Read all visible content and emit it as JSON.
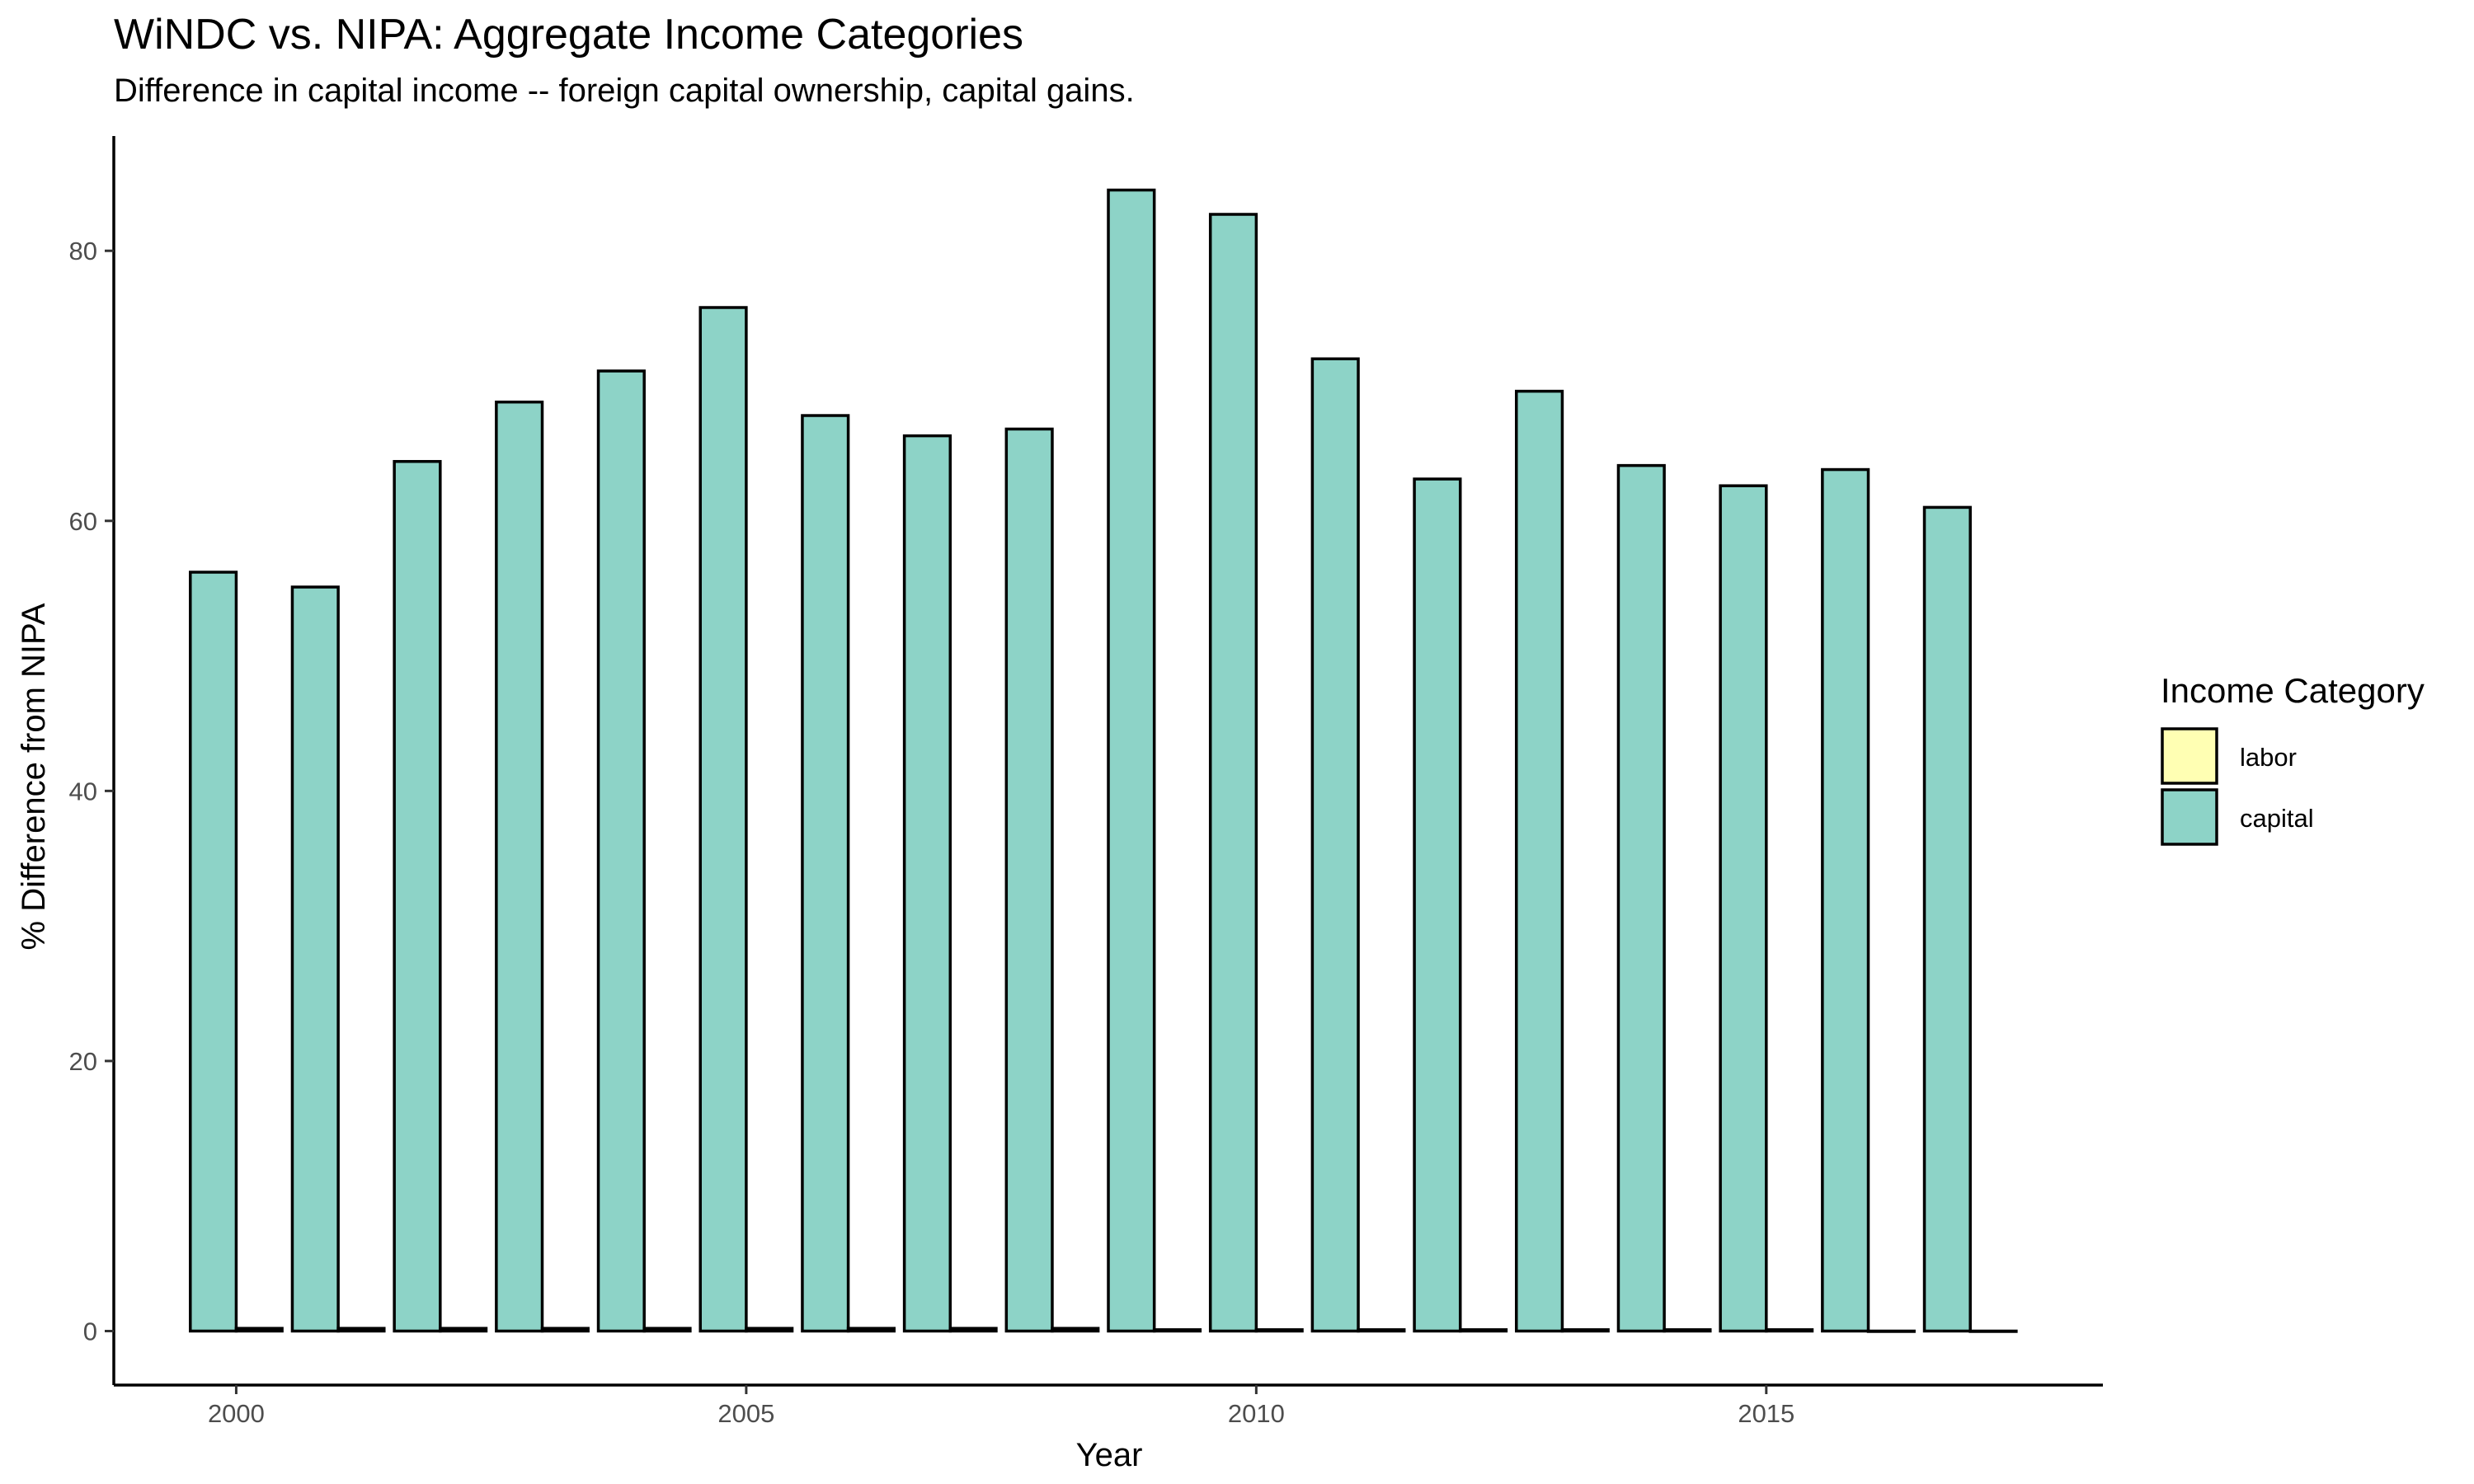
{
  "chart_data": {
    "type": "bar",
    "title": "WiNDC vs. NIPA: Aggregate Income Categories",
    "subtitle": "Difference in capital income -- foreign capital ownership, capital gains.",
    "xlabel": "Year",
    "ylabel": "% Difference from NIPA",
    "x_ticks": [
      "2000",
      "2005",
      "2010",
      "2015"
    ],
    "y_ticks": [
      "0",
      "20",
      "40",
      "60",
      "80"
    ],
    "ylim": [
      -4,
      88.5
    ],
    "xlim": [
      1998.8,
      2018.3
    ],
    "grid": false,
    "legend_position": "right",
    "legend_title": "Income Category",
    "categories": [
      2000,
      2001,
      2002,
      2003,
      2004,
      2005,
      2006,
      2007,
      2008,
      2009,
      2010,
      2011,
      2012,
      2013,
      2014,
      2015,
      2016,
      2017
    ],
    "series": [
      {
        "name": "capital",
        "color": "#8dd3c7",
        "values": [
          56.2,
          55.1,
          64.4,
          68.8,
          71.1,
          75.8,
          67.8,
          66.3,
          66.8,
          84.5,
          82.7,
          72.0,
          63.1,
          69.6,
          64.1,
          62.6,
          63.8,
          61.0
        ]
      },
      {
        "name": "labor",
        "color": "#ffffb3",
        "values": [
          0.2,
          0.2,
          0.2,
          0.2,
          0.2,
          0.2,
          0.2,
          0.2,
          0.2,
          0.1,
          0.1,
          0.1,
          0.1,
          0.1,
          0.1,
          0.1,
          0.0,
          0.0
        ]
      }
    ],
    "legend_order": [
      "labor",
      "capital"
    ]
  }
}
